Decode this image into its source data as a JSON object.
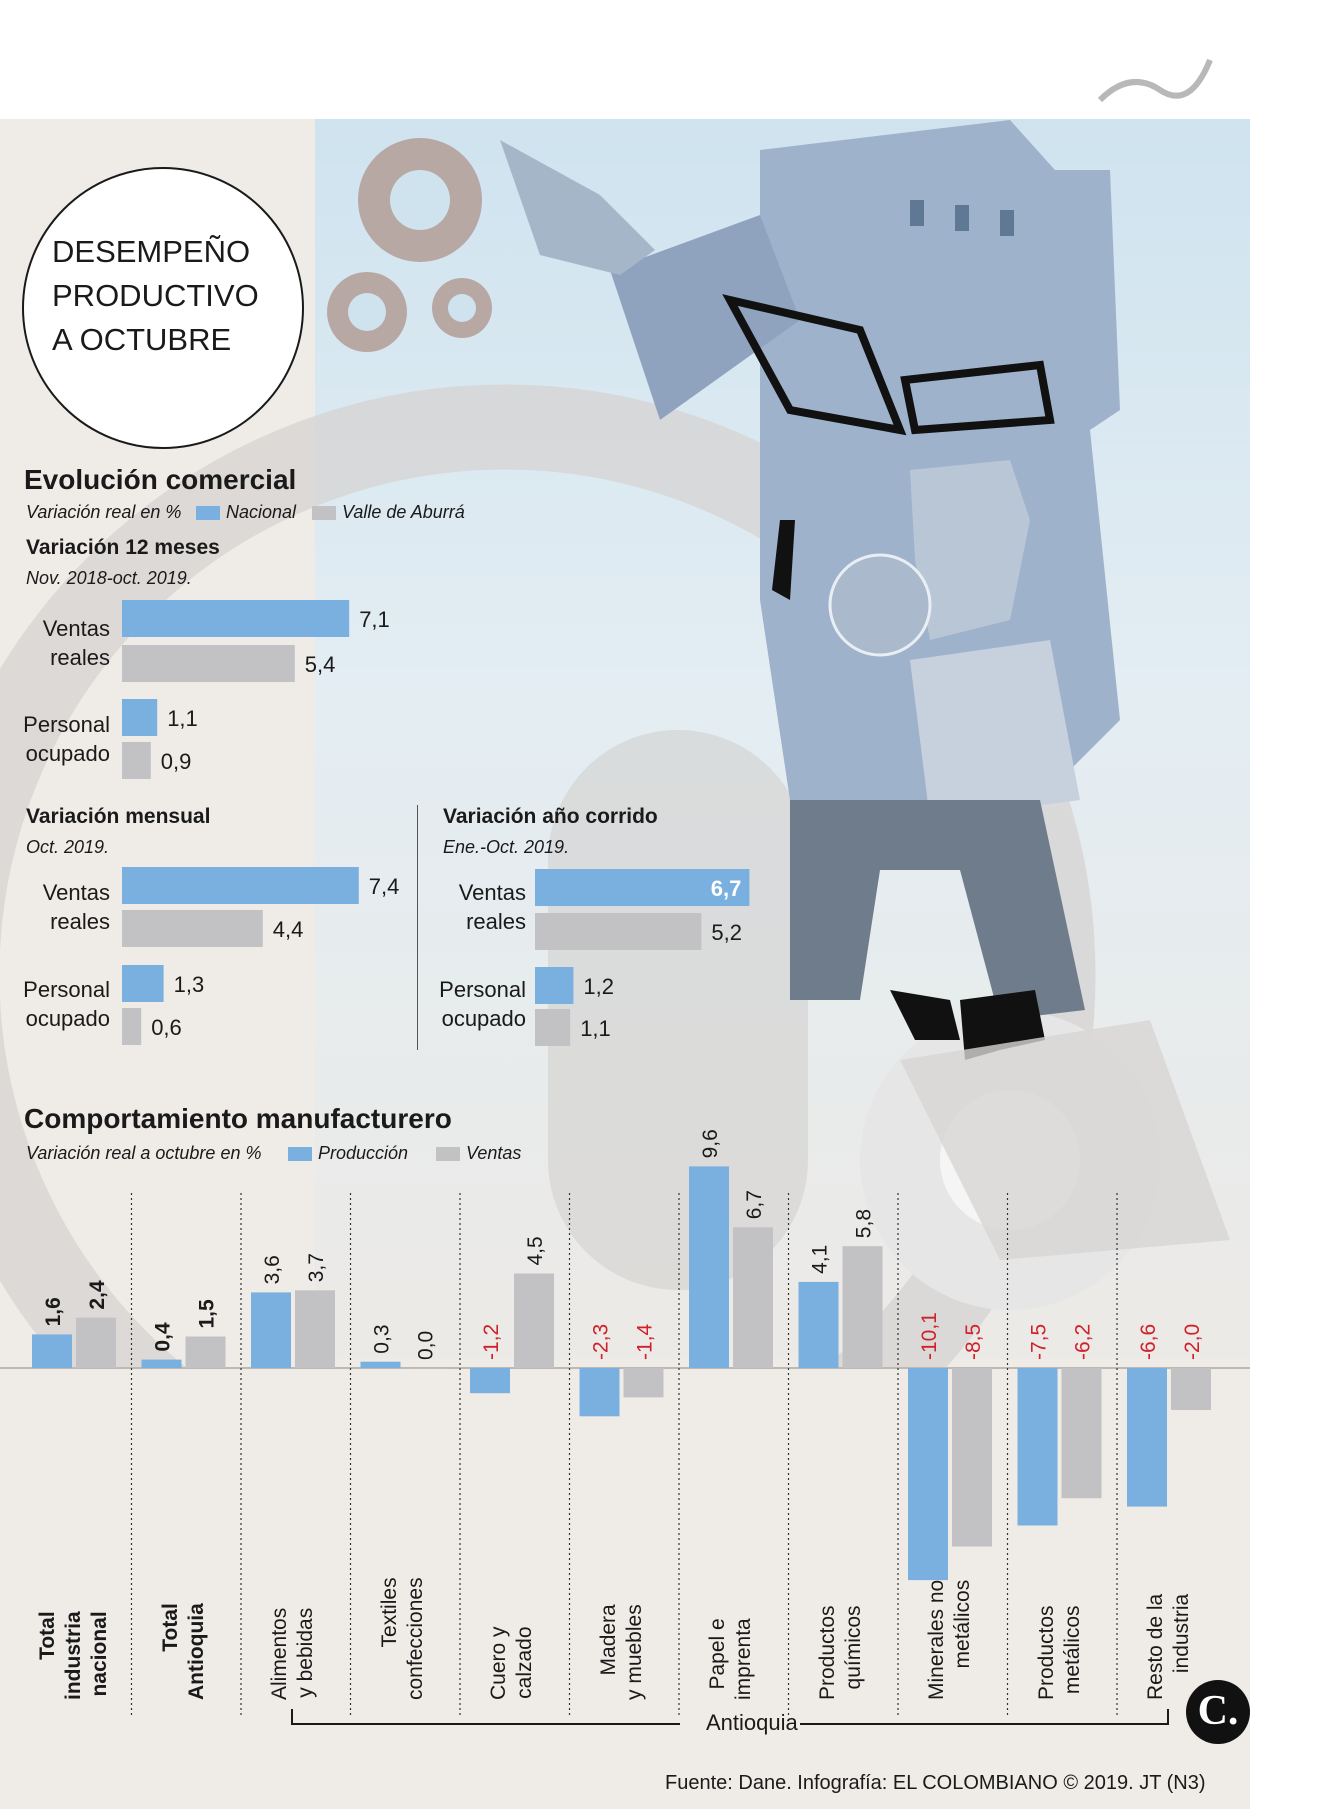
{
  "title_lines": [
    "DESEMPEÑO",
    "PRODUCTIVO",
    "A OCTUBRE"
  ],
  "colors": {
    "nacional": "#7ab0df",
    "valle": "#c2c2c4",
    "negative_label": "#d0202a",
    "highlight_label": "#ffffff"
  },
  "evolucion": {
    "heading": "Evolución comercial",
    "subtitle": "Variación real en %",
    "legend": [
      "Nacional",
      "Valle de Aburrá"
    ]
  },
  "doce_meses": {
    "heading": "Variación 12 meses",
    "period": "Nov. 2018-oct. 2019."
  },
  "mensual": {
    "heading": "Variación mensual",
    "period": "Oct. 2019."
  },
  "anio_corrido": {
    "heading": "Variación año corrido",
    "period": "Ene.-Oct. 2019."
  },
  "row_labels": {
    "ventas": [
      "Ventas",
      "reales"
    ],
    "personal": [
      "Personal",
      "ocupado"
    ]
  },
  "manufactura": {
    "heading": "Comportamiento manufacturero",
    "subtitle": "Variación real a octubre en %",
    "legend": [
      "Producción",
      "Ventas"
    ],
    "group_label": "Antioquia"
  },
  "chart_data": [
    {
      "type": "bar",
      "title": "Variación 12 meses",
      "categories": [
        "Ventas reales",
        "Personal ocupado"
      ],
      "series": [
        {
          "name": "Nacional",
          "values": [
            7.1,
            1.1
          ],
          "labels": [
            "7,1",
            "1,1"
          ]
        },
        {
          "name": "Valle de Aburrá",
          "values": [
            5.4,
            0.9
          ],
          "labels": [
            "5,4",
            "0,9"
          ]
        }
      ]
    },
    {
      "type": "bar",
      "title": "Variación mensual",
      "categories": [
        "Ventas reales",
        "Personal ocupado"
      ],
      "series": [
        {
          "name": "Nacional",
          "values": [
            7.4,
            1.3
          ],
          "labels": [
            "7,4",
            "1,3"
          ]
        },
        {
          "name": "Valle de Aburrá",
          "values": [
            4.4,
            0.6
          ],
          "labels": [
            "4,4",
            "0,6"
          ]
        }
      ]
    },
    {
      "type": "bar",
      "title": "Variación año corrido",
      "categories": [
        "Ventas reales",
        "Personal ocupado"
      ],
      "series": [
        {
          "name": "Nacional",
          "values": [
            6.7,
            1.2
          ],
          "labels": [
            "6,7",
            "1,2"
          ]
        },
        {
          "name": "Valle de Aburrá",
          "values": [
            5.2,
            1.1
          ],
          "labels": [
            "5,2",
            "1,1"
          ]
        }
      ]
    },
    {
      "type": "bar",
      "title": "Comportamiento manufacturero",
      "categories": [
        [
          "Total",
          "industria",
          "nacional"
        ],
        [
          "Total",
          "Antioquia"
        ],
        [
          "Alimentos",
          "y bebidas"
        ],
        [
          "Textiles",
          "confecciones"
        ],
        [
          "Cuero y",
          "calzado"
        ],
        [
          "Madera",
          "y muebles"
        ],
        [
          "Papel e",
          "imprenta"
        ],
        [
          "Productos",
          "químicos"
        ],
        [
          "Minerales no",
          "metálicos"
        ],
        [
          "Productos",
          "metálicos"
        ],
        [
          "Resto de la",
          "industria"
        ]
      ],
      "bold_categories": [
        0,
        1
      ],
      "series": [
        {
          "name": "Producción",
          "values": [
            1.6,
            0.4,
            3.6,
            0.3,
            -1.2,
            -2.3,
            9.6,
            4.1,
            -10.1,
            -7.5,
            -6.6
          ],
          "labels": [
            "1,6",
            "0,4",
            "3,6",
            "0,3",
            "-1,2",
            "-2,3",
            "9,6",
            "4,1",
            "-10,1",
            "-7,5",
            "-6,6"
          ]
        },
        {
          "name": "Ventas",
          "values": [
            2.4,
            1.5,
            3.7,
            0.0,
            4.5,
            -1.4,
            6.7,
            5.8,
            -8.5,
            -6.2,
            -2.0
          ],
          "labels": [
            "2,4",
            "1,5",
            "3,7",
            "0,0",
            "4,5",
            "-1,4",
            "6,7",
            "5,8",
            "-8,5",
            "-6,2",
            "-2,0"
          ]
        }
      ]
    }
  ],
  "footer": "Fuente: Dane.  Infografía: EL COLOMBIANO © 2019. JT (N3)",
  "logo_text": "C."
}
